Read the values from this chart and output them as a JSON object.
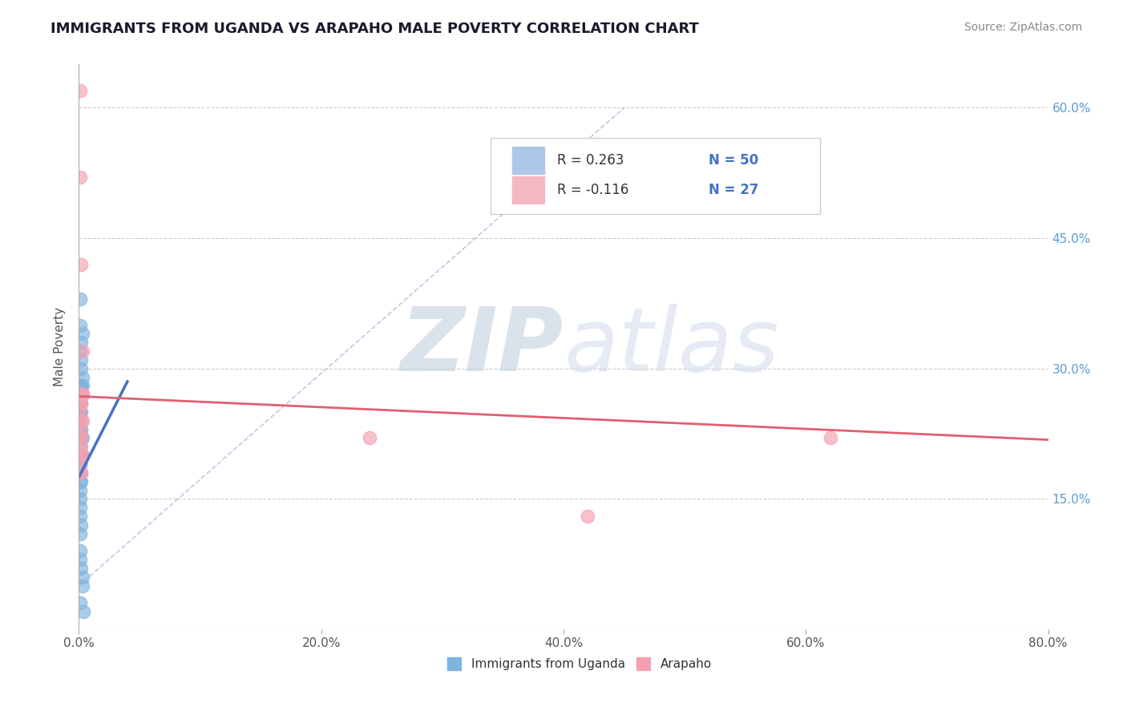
{
  "title": "IMMIGRANTS FROM UGANDA VS ARAPAHO MALE POVERTY CORRELATION CHART",
  "source": "Source: ZipAtlas.com",
  "ylabel": "Male Poverty",
  "xlim": [
    0,
    0.8
  ],
  "ylim": [
    0,
    0.65
  ],
  "yticks": [
    0.15,
    0.3,
    0.45,
    0.6
  ],
  "ytick_labels": [
    "15.0%",
    "30.0%",
    "45.0%",
    "60.0%"
  ],
  "xticks": [
    0.0,
    0.2,
    0.4,
    0.6,
    0.8
  ],
  "xtick_labels": [
    "0.0%",
    "20.0%",
    "40.0%",
    "60.0%",
    "80.0%"
  ],
  "blue_scatter_x": [
    0.001,
    0.002,
    0.002,
    0.003,
    0.001,
    0.001,
    0.002,
    0.003,
    0.001,
    0.001,
    0.002,
    0.002,
    0.001,
    0.001,
    0.001,
    0.001,
    0.002,
    0.002,
    0.003,
    0.001,
    0.001,
    0.001,
    0.002,
    0.001,
    0.001,
    0.001,
    0.002,
    0.003,
    0.001,
    0.001,
    0.001,
    0.001,
    0.002,
    0.003,
    0.002,
    0.001,
    0.002,
    0.001,
    0.001,
    0.001,
    0.001,
    0.002,
    0.001,
    0.001,
    0.001,
    0.002,
    0.003,
    0.003,
    0.001,
    0.004
  ],
  "blue_scatter_y": [
    0.38,
    0.33,
    0.31,
    0.34,
    0.35,
    0.32,
    0.3,
    0.29,
    0.28,
    0.27,
    0.28,
    0.27,
    0.26,
    0.25,
    0.25,
    0.24,
    0.26,
    0.25,
    0.28,
    0.23,
    0.22,
    0.22,
    0.23,
    0.21,
    0.2,
    0.2,
    0.22,
    0.22,
    0.19,
    0.19,
    0.18,
    0.18,
    0.2,
    0.2,
    0.18,
    0.17,
    0.17,
    0.16,
    0.15,
    0.14,
    0.13,
    0.12,
    0.11,
    0.09,
    0.08,
    0.07,
    0.06,
    0.05,
    0.03,
    0.02
  ],
  "pink_scatter_x": [
    0.001,
    0.001,
    0.001,
    0.002,
    0.002,
    0.002,
    0.003,
    0.003,
    0.001,
    0.002,
    0.003,
    0.001,
    0.002,
    0.003,
    0.001,
    0.002,
    0.001,
    0.001,
    0.002,
    0.003,
    0.001,
    0.001,
    0.002,
    0.002,
    0.24,
    0.42,
    0.62
  ],
  "pink_scatter_y": [
    0.62,
    0.52,
    0.27,
    0.42,
    0.27,
    0.26,
    0.27,
    0.32,
    0.25,
    0.26,
    0.27,
    0.23,
    0.24,
    0.24,
    0.22,
    0.21,
    0.2,
    0.19,
    0.2,
    0.2,
    0.18,
    0.24,
    0.22,
    0.18,
    0.22,
    0.13,
    0.22
  ],
  "blue_trend_x": [
    0.0,
    0.04
  ],
  "blue_trend_y": [
    0.175,
    0.285
  ],
  "pink_trend_x": [
    0.0,
    0.8
  ],
  "pink_trend_y": [
    0.268,
    0.218
  ],
  "dashed_line_x": [
    0.0,
    0.45
  ],
  "dashed_line_y": [
    0.05,
    0.6
  ],
  "blue_dot_color": "#7fb3e0",
  "pink_dot_color": "#f4a0b0",
  "blue_line_color": "#4472c4",
  "pink_line_color": "#e06070",
  "dashed_line_color": "#b8cce4",
  "grid_color": "#cccccc",
  "title_color": "#1a1a2e",
  "source_color": "#888888",
  "right_tick_color": "#5b9bd5",
  "legend_r1": "R = 0.263",
  "legend_n1": "N = 50",
  "legend_r2": "R = -0.116",
  "legend_n2": "N = 27",
  "legend_box1_color": "#aec6e8",
  "legend_box2_color": "#f4b8c1",
  "bottom_legend_blue": "Immigrants from Uganda",
  "bottom_legend_pink": "Arapaho",
  "watermark_zip_color": "#c2cfe0",
  "watermark_atlas_color": "#d5dded"
}
